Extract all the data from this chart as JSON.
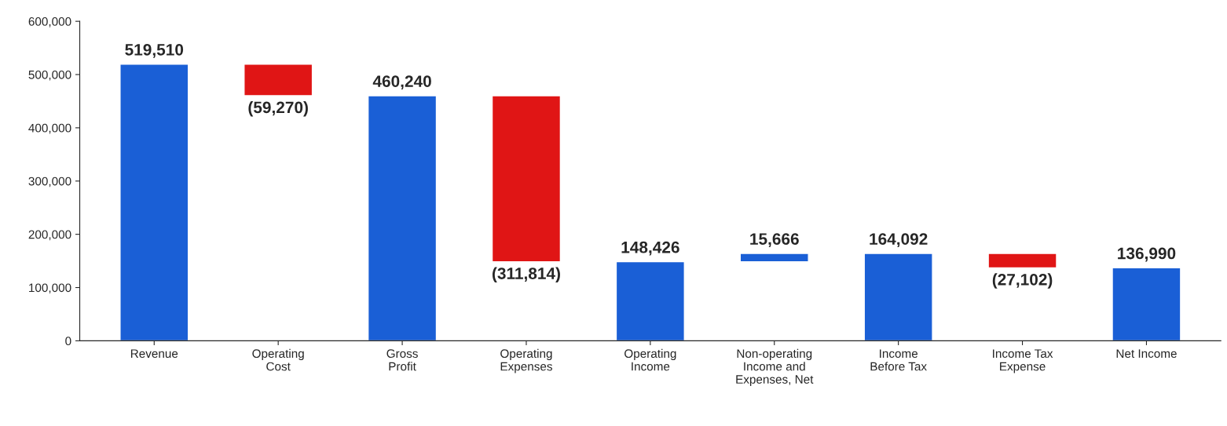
{
  "chart_data": {
    "type": "bar",
    "categories": [
      "Revenue",
      "Operating\nCost",
      "Gross\nProfit",
      "Operating\nExpenses",
      "Operating\nIncome",
      "Non-operating\nIncome and\nExpenses, Net",
      "Income\nBefore Tax",
      "Income Tax\nExpense",
      "Net Income"
    ],
    "values": [
      519510,
      -59270,
      460240,
      -311814,
      148426,
      15666,
      164092,
      -27102,
      136990
    ],
    "base": [
      0,
      519510,
      0,
      460240,
      0,
      148426,
      0,
      164092,
      0
    ],
    "colors": [
      "#1a5fd6",
      "#e01515",
      "#1a5fd6",
      "#e01515",
      "#1a5fd6",
      "#1a5fd6",
      "#1a5fd6",
      "#e01515",
      "#1a5fd6"
    ],
    "value_labels": [
      "519,510",
      "(59,270)",
      "460,240",
      "(311,814)",
      "148,426",
      "15,666",
      "164,092",
      "(27,102)",
      "136,990"
    ],
    "ylim": [
      0,
      600000
    ],
    "yticks": [
      0,
      {
        "value": 100000,
        "label": "100,000"
      },
      {
        "value": 200000,
        "label": "200,000"
      },
      {
        "value": 300000,
        "label": "300,000"
      },
      {
        "value": 400000,
        "label": "400,000"
      },
      {
        "value": 500000,
        "label": "500,000"
      },
      {
        "value": 600000,
        "label": "600,000"
      }
    ],
    "grid": false,
    "legend": false
  }
}
